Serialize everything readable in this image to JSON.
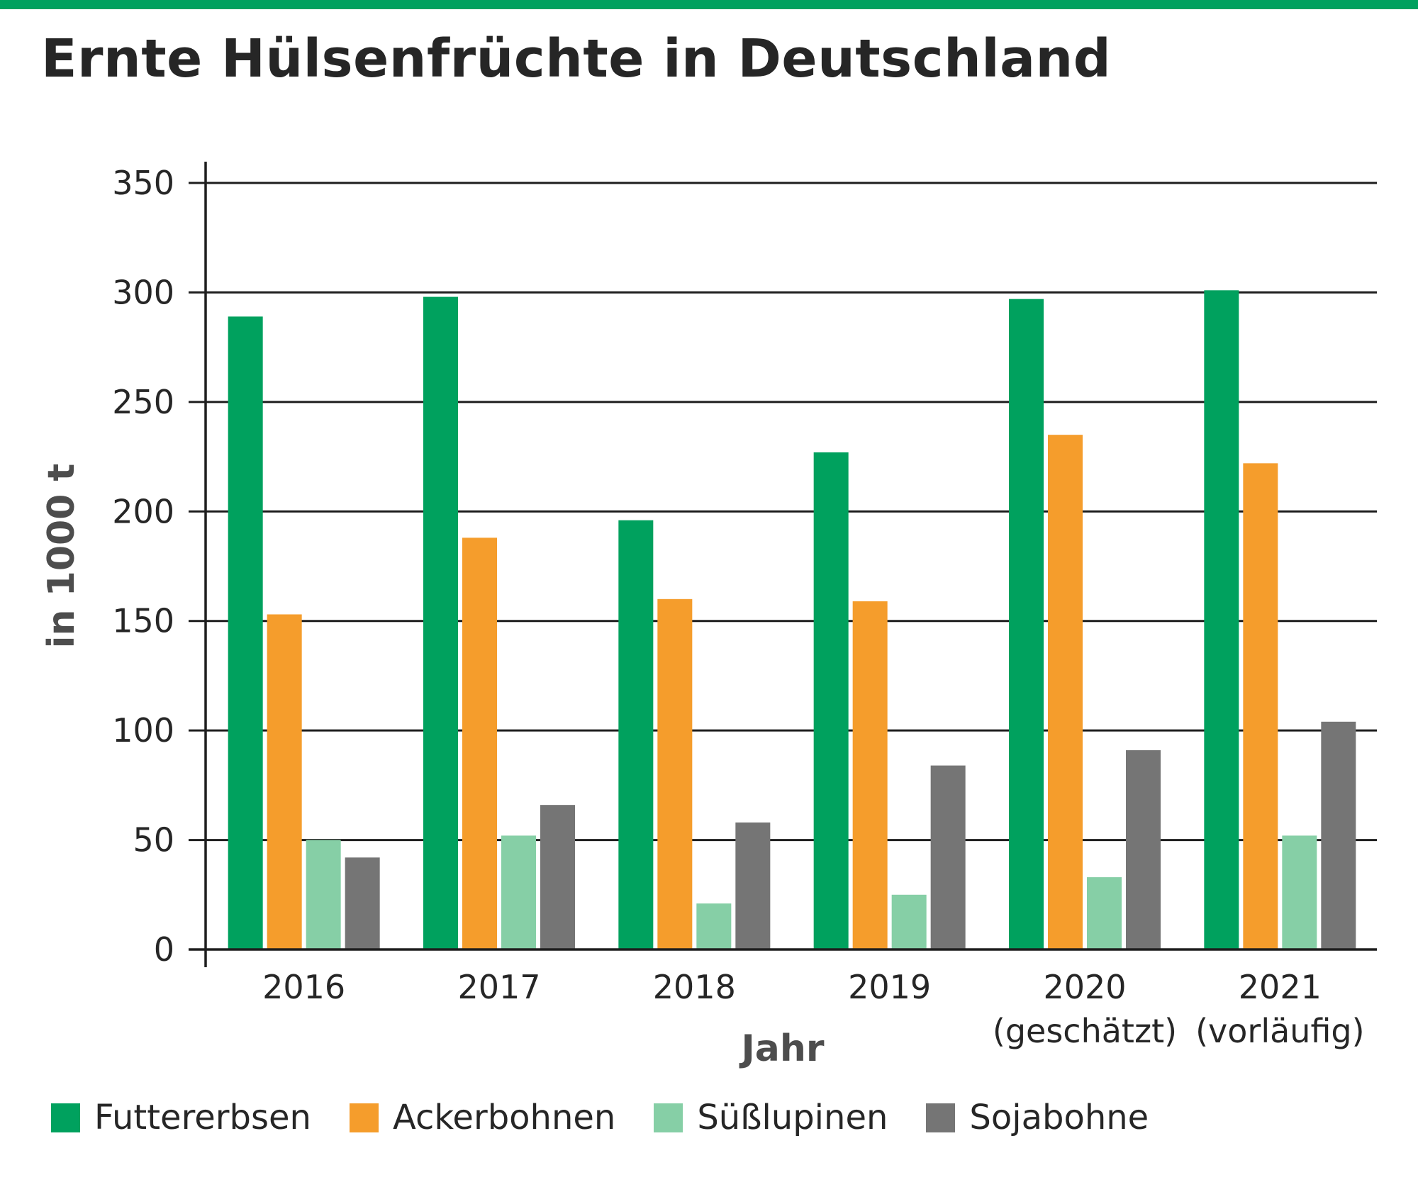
{
  "chart_data": {
    "type": "bar",
    "title": "Ernte Hülsenfrüchte in Deutschland",
    "xlabel": "Jahr",
    "ylabel": "in 1000 t",
    "ylim": [
      0,
      350
    ],
    "yticks": [
      0,
      50,
      100,
      150,
      200,
      250,
      300,
      350
    ],
    "grid": true,
    "legend": "bottom",
    "categories": [
      [
        "2016"
      ],
      [
        "2017"
      ],
      [
        "2018"
      ],
      [
        "2019"
      ],
      [
        "2020",
        "(geschätzt)"
      ],
      [
        "2021",
        "(vorläufig)"
      ]
    ],
    "series": [
      {
        "name": "Futtererbsen",
        "color": "#00a15e",
        "values": [
          289,
          298,
          196,
          227,
          297,
          301
        ]
      },
      {
        "name": "Ackerbohnen",
        "color": "#f59d2c",
        "values": [
          153,
          188,
          160,
          159,
          235,
          222
        ]
      },
      {
        "name": "Süßlupinen",
        "color": "#86cfa6",
        "values": [
          50,
          52,
          21,
          25,
          33,
          52
        ]
      },
      {
        "name": "Sojabohne",
        "color": "#757575",
        "values": [
          42,
          66,
          58,
          84,
          91,
          104
        ]
      }
    ]
  }
}
